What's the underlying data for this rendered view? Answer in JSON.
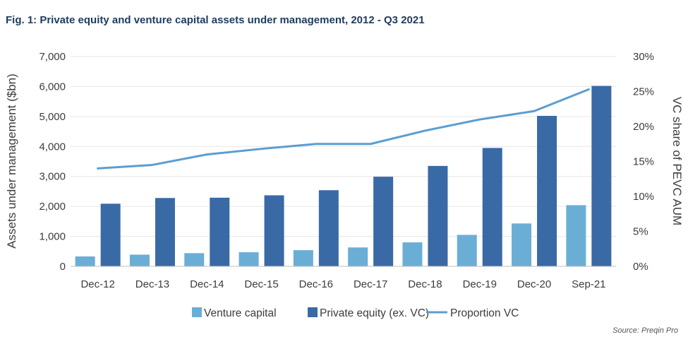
{
  "chart_data": {
    "type": "bar",
    "title": "Fig. 1: Private equity and venture capital assets under management, 2012 - Q3 2021",
    "categories": [
      "Dec-12",
      "Dec-13",
      "Dec-14",
      "Dec-15",
      "Dec-16",
      "Dec-17",
      "Dec-18",
      "Dec-19",
      "Dec-20",
      "Sep-21"
    ],
    "series": [
      {
        "name": "Venture capital",
        "kind": "bar",
        "axis": "left",
        "color": "#6aaed6",
        "values": [
          330,
          390,
          440,
          470,
          540,
          630,
          800,
          1050,
          1430,
          2040
        ]
      },
      {
        "name": "Private equity (ex. VC)",
        "kind": "bar",
        "axis": "left",
        "color": "#3a6aa6",
        "values": [
          2090,
          2280,
          2290,
          2370,
          2540,
          2990,
          3350,
          3950,
          5020,
          6020
        ]
      },
      {
        "name": "Proportion VC",
        "kind": "line",
        "axis": "right",
        "color": "#5b9ed0",
        "values": [
          14.0,
          14.5,
          16.0,
          16.8,
          17.5,
          17.5,
          19.4,
          21.0,
          22.2,
          25.3
        ]
      }
    ],
    "ylabel": "Assets under management ($bn)",
    "ylim": [
      0,
      7000
    ],
    "yticks": [
      "0",
      "1,000",
      "2,000",
      "3,000",
      "4,000",
      "5,000",
      "6,000",
      "7,000"
    ],
    "ylabel_right": "VC share of PEVC AUM",
    "ylim_right": [
      0,
      30
    ],
    "yticks_right": [
      "0%",
      "5%",
      "10%",
      "15%",
      "20%",
      "25%",
      "30%"
    ],
    "grid": true,
    "legend_position": "bottom",
    "source": "Source: Preqin Pro"
  }
}
